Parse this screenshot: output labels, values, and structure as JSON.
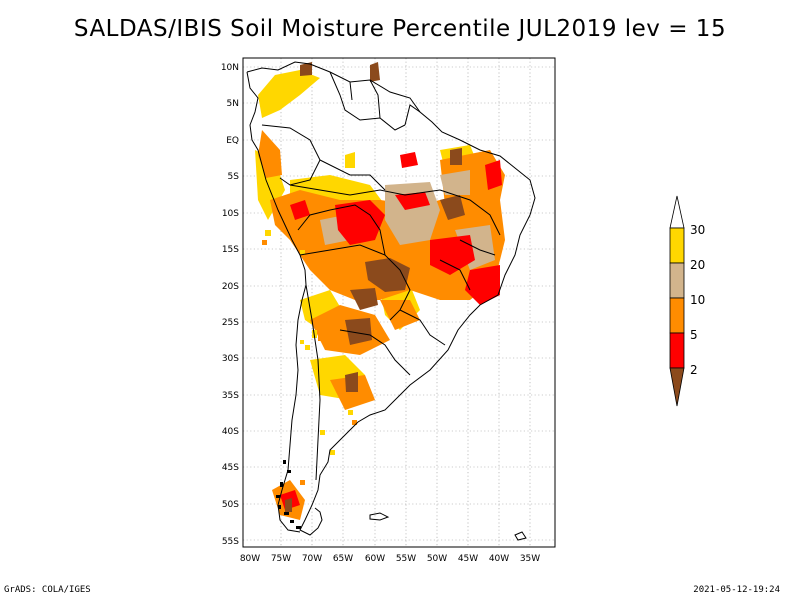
{
  "title": "SALDAS/IBIS Soil Moisture Percentile JUL2019 lev = 15",
  "footer_left": "GrADS: COLA/IGES",
  "footer_right": "2021-05-12-19:24",
  "map": {
    "lon_range": [
      -80,
      -30
    ],
    "lat_range": [
      -55,
      10
    ],
    "lon_labels": [
      "80W",
      "75W",
      "70W",
      "65W",
      "60W",
      "55W",
      "50W",
      "45W",
      "40W",
      "35W"
    ],
    "lat_labels": [
      "10N",
      "5N",
      "EQ",
      "5S",
      "10S",
      "15S",
      "20S",
      "25S",
      "30S",
      "35S",
      "40S",
      "45S",
      "50S",
      "55S"
    ]
  },
  "colorbar": {
    "levels": [
      "2",
      "5",
      "10",
      "20",
      "30"
    ],
    "colors": {
      "lt2": "#8b4a1c",
      "2_5": "#ff0000",
      "5_10": "#ff8c00",
      "10_20": "#d2b48c",
      "20_30": "#ffd700",
      "gt30": "#ffffff"
    }
  }
}
